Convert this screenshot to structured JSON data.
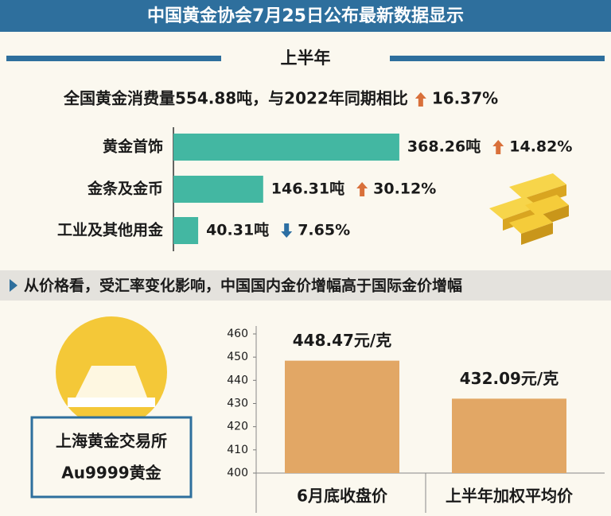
{
  "header": {
    "title": "中国黄金协会7月25日公布最新数据显示",
    "section": "上半年",
    "note": "从价格看，受汇率变化影响，中国国内金价增幅高于国际金价增幅",
    "box": [
      "上海黄金交易所",
      "Au9999黄金"
    ]
  },
  "chart_data": [
    {
      "type": "hbar",
      "subtitle": "全国黄金消费量554.88吨，与2022年同期相比",
      "total_change": 16.37,
      "total_change_label": "16.37%",
      "categories": [
        "黄金首饰",
        "金条及金币",
        "工业及其他用金"
      ],
      "values": [
        368.26,
        146.31,
        40.31
      ],
      "value_labels": [
        "368.26吨",
        "146.31吨",
        "40.31吨"
      ],
      "changes": [
        14.82,
        30.12,
        -7.65
      ],
      "change_labels": [
        "14.82%",
        "30.12%",
        "7.65%"
      ],
      "color": "#43b7a2",
      "up_color": "#d9703a",
      "down_color": "#2c6fa3"
    },
    {
      "type": "bar",
      "categories": [
        "6月底收盘价",
        "上半年加权平均价"
      ],
      "values": [
        448.47,
        432.09
      ],
      "value_labels": [
        "448.47元/克",
        "432.09元/克"
      ],
      "ylim": [
        400,
        460
      ],
      "yticks": [
        400,
        410,
        420,
        430,
        440,
        450,
        460
      ],
      "color": "#e2a765"
    }
  ]
}
